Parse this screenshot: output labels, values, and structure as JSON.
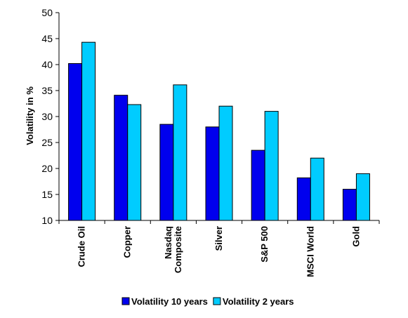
{
  "chart_data": {
    "type": "bar",
    "title": "",
    "xlabel": "",
    "ylabel": "Volatility in %",
    "ylim": [
      10,
      50
    ],
    "yticks": [
      10,
      15,
      20,
      25,
      30,
      35,
      40,
      45,
      50
    ],
    "grid": false,
    "legend_position": "bottom",
    "categories": [
      [
        "Crude Oil"
      ],
      [
        "Copper"
      ],
      [
        "Nasdaq",
        "Composite"
      ],
      [
        "Silver"
      ],
      [
        "S&P 500"
      ],
      [
        "MSCI World"
      ],
      [
        "Gold"
      ]
    ],
    "series": [
      {
        "name": "Volatility 10 years",
        "color": "#0000EE",
        "values": [
          40.2,
          34.1,
          28.5,
          28.0,
          23.5,
          18.2,
          16.0
        ]
      },
      {
        "name": "Volatility 2 years",
        "color": "#00CCFF",
        "values": [
          44.3,
          32.3,
          36.1,
          32.0,
          31.0,
          22.0,
          19.0
        ]
      }
    ]
  }
}
